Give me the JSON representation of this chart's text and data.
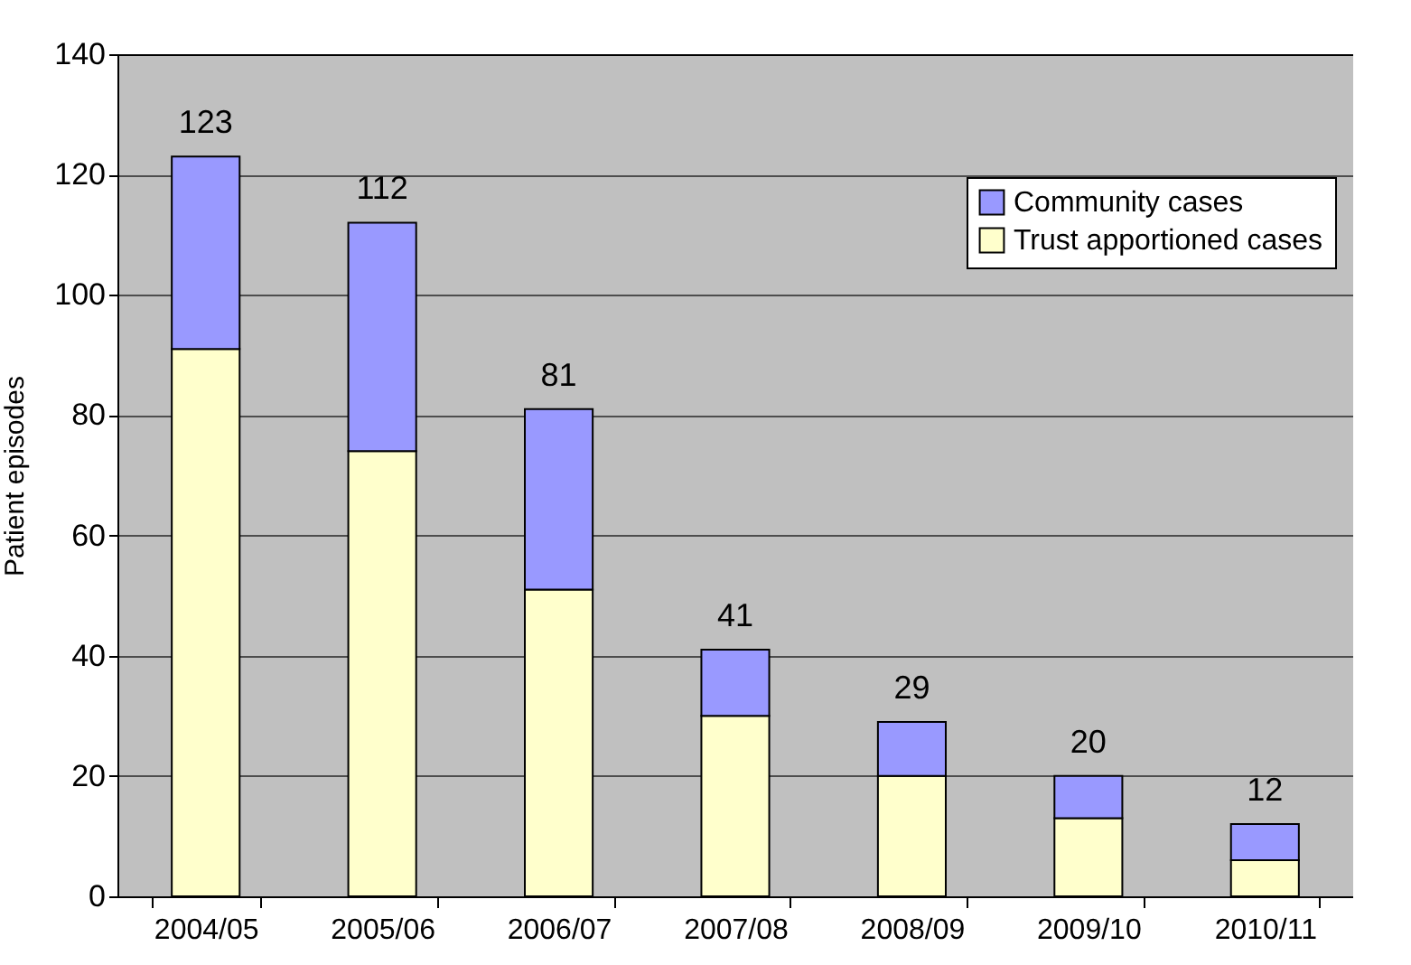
{
  "chart_data": {
    "type": "bar",
    "stacked": true,
    "ylabel": "Patient episodes",
    "categories": [
      "2004/05",
      "2005/06",
      "2006/07",
      "2007/08",
      "2008/09",
      "2009/10",
      "2010/11"
    ],
    "series": [
      {
        "name": "Trust apportioned cases",
        "color": "#ffffcc",
        "values": [
          91,
          74,
          51,
          30,
          20,
          13,
          6
        ]
      },
      {
        "name": "Community cases",
        "color": "#9999ff",
        "values": [
          32,
          38,
          30,
          11,
          9,
          7,
          6
        ]
      }
    ],
    "totals": [
      "123",
      "112",
      "81",
      "41",
      "29",
      "20",
      "12"
    ],
    "ylim": [
      0,
      140
    ],
    "yticks": [
      0,
      20,
      40,
      60,
      80,
      100,
      120,
      140
    ],
    "grid": "y",
    "legend": "top right"
  }
}
